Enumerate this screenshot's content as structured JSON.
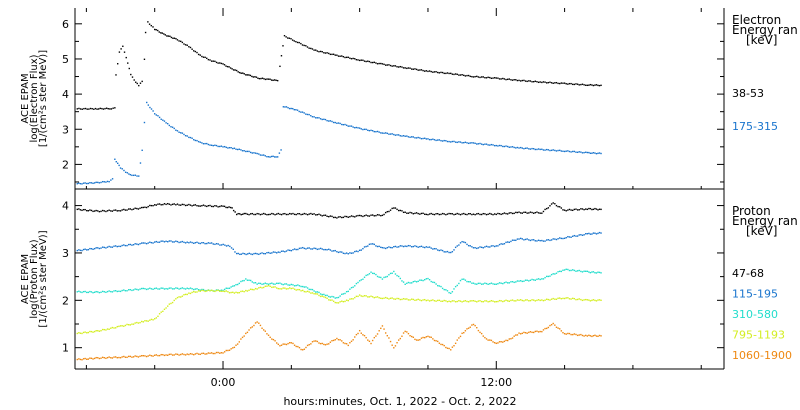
{
  "xaxis": {
    "label": "hours:minutes, Oct.  1, 2022 - Oct.  2, 2022",
    "ticks": [
      {
        "hour": 0,
        "label": "0:00"
      },
      {
        "hour": 12,
        "label": "12:00"
      }
    ]
  },
  "chart_data": [
    {
      "type": "scatter",
      "panel": "electron",
      "ylabel": [
        "ACE EPAM",
        "log(Electron Flux)",
        "[1/(cm²s ster MeV)]"
      ],
      "ylim": [
        1.3,
        6.45
      ],
      "yticks": [
        2,
        3,
        4,
        5,
        6
      ],
      "xlim": [
        -6.5,
        22
      ],
      "legend": {
        "title": [
          "Electron",
          "Energy ran",
          "[keV]"
        ]
      },
      "series": [
        {
          "name": "38-53",
          "color": "#000000",
          "points": [
            [
              -6.4,
              3.58
            ],
            [
              -5.6,
              3.58
            ],
            [
              -4.9,
              3.59
            ],
            [
              -4.75,
              3.6
            ],
            [
              -4.7,
              4.55
            ],
            [
              -4.55,
              5.2
            ],
            [
              -4.4,
              5.35
            ],
            [
              -4.25,
              5.05
            ],
            [
              -4.05,
              4.55
            ],
            [
              -3.9,
              4.4
            ],
            [
              -3.7,
              4.25
            ],
            [
              -3.55,
              4.35
            ],
            [
              -3.45,
              5.0
            ],
            [
              -3.4,
              5.75
            ],
            [
              -3.3,
              6.05
            ],
            [
              -3.0,
              5.85
            ],
            [
              -2.6,
              5.7
            ],
            [
              -2.0,
              5.55
            ],
            [
              -1.5,
              5.35
            ],
            [
              -1.0,
              5.1
            ],
            [
              -0.5,
              4.95
            ],
            [
              0.0,
              4.85
            ],
            [
              0.4,
              4.72
            ],
            [
              0.8,
              4.6
            ],
            [
              1.2,
              4.52
            ],
            [
              1.6,
              4.45
            ],
            [
              2.0,
              4.42
            ],
            [
              2.4,
              4.38
            ],
            [
              2.5,
              4.8
            ],
            [
              2.7,
              5.65
            ],
            [
              3.2,
              5.5
            ],
            [
              4.0,
              5.25
            ],
            [
              5.0,
              5.1
            ],
            [
              6.0,
              4.97
            ],
            [
              7.0,
              4.85
            ],
            [
              8.0,
              4.75
            ],
            [
              9.0,
              4.65
            ],
            [
              10.0,
              4.58
            ],
            [
              11.0,
              4.5
            ],
            [
              12.0,
              4.45
            ],
            [
              13.0,
              4.39
            ],
            [
              14.0,
              4.34
            ],
            [
              15.0,
              4.3
            ],
            [
              16.0,
              4.26
            ],
            [
              16.6,
              4.25
            ]
          ]
        },
        {
          "name": "175-315",
          "color": "#1874cd",
          "points": [
            [
              -6.4,
              1.45
            ],
            [
              -5.5,
              1.48
            ],
            [
              -5.0,
              1.52
            ],
            [
              -4.85,
              1.58
            ],
            [
              -4.75,
              2.15
            ],
            [
              -4.5,
              1.9
            ],
            [
              -4.2,
              1.75
            ],
            [
              -4.0,
              1.7
            ],
            [
              -3.7,
              1.66
            ],
            [
              -3.55,
              2.4
            ],
            [
              -3.45,
              3.2
            ],
            [
              -3.35,
              3.75
            ],
            [
              -3.0,
              3.45
            ],
            [
              -2.5,
              3.18
            ],
            [
              -2.0,
              2.95
            ],
            [
              -1.5,
              2.78
            ],
            [
              -1.0,
              2.62
            ],
            [
              -0.5,
              2.55
            ],
            [
              0.0,
              2.5
            ],
            [
              0.5,
              2.45
            ],
            [
              1.0,
              2.38
            ],
            [
              1.5,
              2.3
            ],
            [
              2.0,
              2.22
            ],
            [
              2.4,
              2.22
            ],
            [
              2.55,
              2.4
            ],
            [
              2.65,
              3.65
            ],
            [
              3.2,
              3.55
            ],
            [
              4.0,
              3.35
            ],
            [
              5.0,
              3.18
            ],
            [
              6.0,
              3.02
            ],
            [
              7.0,
              2.9
            ],
            [
              8.0,
              2.8
            ],
            [
              9.0,
              2.72
            ],
            [
              10.0,
              2.65
            ],
            [
              11.0,
              2.6
            ],
            [
              12.0,
              2.54
            ],
            [
              13.0,
              2.47
            ],
            [
              14.0,
              2.42
            ],
            [
              15.0,
              2.38
            ],
            [
              16.0,
              2.33
            ],
            [
              16.6,
              2.31
            ]
          ]
        }
      ]
    },
    {
      "type": "scatter",
      "panel": "proton",
      "ylabel": [
        "ACE EPAM",
        "log(Proton Flux)",
        "[1/(cm²s ster MeV)]"
      ],
      "ylim": [
        0.55,
        4.35
      ],
      "yticks": [
        1,
        2,
        3,
        4
      ],
      "xlim": [
        -6.5,
        22
      ],
      "legend": {
        "title": [
          "Proton",
          "Energy ran",
          "[keV]"
        ]
      },
      "series": [
        {
          "name": "47-68",
          "color": "#000000",
          "points": [
            [
              -6.4,
              3.92
            ],
            [
              -5.5,
              3.88
            ],
            [
              -4.5,
              3.9
            ],
            [
              -3.5,
              3.95
            ],
            [
              -3.0,
              4.02
            ],
            [
              -2.5,
              4.03
            ],
            [
              -2.0,
              4.02
            ],
            [
              -1.0,
              4.0
            ],
            [
              0.0,
              3.98
            ],
            [
              0.4,
              3.95
            ],
            [
              0.6,
              3.82
            ],
            [
              1.0,
              3.82
            ],
            [
              2.0,
              3.82
            ],
            [
              3.0,
              3.82
            ],
            [
              4.0,
              3.82
            ],
            [
              5.0,
              3.75
            ],
            [
              6.0,
              3.78
            ],
            [
              7.0,
              3.8
            ],
            [
              7.5,
              3.95
            ],
            [
              8.0,
              3.85
            ],
            [
              9.0,
              3.82
            ],
            [
              10.0,
              3.82
            ],
            [
              11.0,
              3.82
            ],
            [
              12.0,
              3.82
            ],
            [
              13.0,
              3.85
            ],
            [
              14.0,
              3.85
            ],
            [
              14.5,
              4.05
            ],
            [
              15.0,
              3.9
            ],
            [
              16.0,
              3.93
            ],
            [
              16.6,
              3.92
            ]
          ]
        },
        {
          "name": "115-195",
          "color": "#1874cd",
          "points": [
            [
              -6.4,
              3.05
            ],
            [
              -5.5,
              3.1
            ],
            [
              -4.5,
              3.15
            ],
            [
              -3.5,
              3.2
            ],
            [
              -2.5,
              3.25
            ],
            [
              -1.5,
              3.22
            ],
            [
              -0.5,
              3.2
            ],
            [
              0.3,
              3.15
            ],
            [
              0.6,
              2.98
            ],
            [
              1.5,
              2.98
            ],
            [
              2.5,
              3.02
            ],
            [
              3.5,
              3.1
            ],
            [
              4.5,
              3.08
            ],
            [
              5.5,
              2.98
            ],
            [
              6.0,
              3.05
            ],
            [
              6.5,
              3.2
            ],
            [
              7.0,
              3.1
            ],
            [
              8.0,
              3.15
            ],
            [
              9.0,
              3.12
            ],
            [
              10.0,
              3.0
            ],
            [
              10.5,
              3.25
            ],
            [
              11.0,
              3.1
            ],
            [
              12.0,
              3.15
            ],
            [
              13.0,
              3.3
            ],
            [
              14.0,
              3.25
            ],
            [
              15.0,
              3.32
            ],
            [
              16.0,
              3.4
            ],
            [
              16.6,
              3.42
            ]
          ]
        },
        {
          "name": "310-580",
          "color": "#22ddcc",
          "points": [
            [
              -6.4,
              2.18
            ],
            [
              -5.5,
              2.17
            ],
            [
              -4.5,
              2.2
            ],
            [
              -3.5,
              2.24
            ],
            [
              -2.5,
              2.25
            ],
            [
              -1.5,
              2.25
            ],
            [
              -0.5,
              2.2
            ],
            [
              0.0,
              2.22
            ],
            [
              0.5,
              2.3
            ],
            [
              1.0,
              2.45
            ],
            [
              1.5,
              2.35
            ],
            [
              2.5,
              2.35
            ],
            [
              3.5,
              2.3
            ],
            [
              4.5,
              2.1
            ],
            [
              5.0,
              2.05
            ],
            [
              5.5,
              2.2
            ],
            [
              6.0,
              2.4
            ],
            [
              6.5,
              2.6
            ],
            [
              7.0,
              2.45
            ],
            [
              7.5,
              2.6
            ],
            [
              8.0,
              2.35
            ],
            [
              9.0,
              2.45
            ],
            [
              10.0,
              2.15
            ],
            [
              10.5,
              2.45
            ],
            [
              11.0,
              2.35
            ],
            [
              12.0,
              2.35
            ],
            [
              13.0,
              2.4
            ],
            [
              14.0,
              2.45
            ],
            [
              15.0,
              2.65
            ],
            [
              16.0,
              2.6
            ],
            [
              16.6,
              2.58
            ]
          ]
        },
        {
          "name": "795-1193",
          "color": "#d4ee22",
          "points": [
            [
              -6.4,
              1.3
            ],
            [
              -5.5,
              1.35
            ],
            [
              -5.0,
              1.4
            ],
            [
              -4.5,
              1.45
            ],
            [
              -4.0,
              1.5
            ],
            [
              -3.5,
              1.55
            ],
            [
              -3.0,
              1.6
            ],
            [
              -2.5,
              1.85
            ],
            [
              -2.0,
              2.05
            ],
            [
              -1.5,
              2.15
            ],
            [
              -1.0,
              2.2
            ],
            [
              -0.5,
              2.2
            ],
            [
              0.0,
              2.2
            ],
            [
              0.5,
              2.15
            ],
            [
              1.0,
              2.2
            ],
            [
              1.5,
              2.25
            ],
            [
              2.0,
              2.3
            ],
            [
              2.5,
              2.25
            ],
            [
              3.0,
              2.25
            ],
            [
              3.5,
              2.2
            ],
            [
              4.0,
              2.15
            ],
            [
              4.5,
              2.05
            ],
            [
              5.0,
              1.95
            ],
            [
              5.5,
              2.0
            ],
            [
              6.0,
              2.1
            ],
            [
              7.0,
              2.05
            ],
            [
              8.0,
              2.02
            ],
            [
              9.0,
              2.0
            ],
            [
              10.0,
              1.98
            ],
            [
              11.0,
              1.98
            ],
            [
              12.0,
              1.98
            ],
            [
              13.0,
              2.0
            ],
            [
              14.0,
              2.0
            ],
            [
              15.0,
              2.05
            ],
            [
              16.0,
              2.0
            ],
            [
              16.6,
              2.0
            ]
          ]
        },
        {
          "name": "1060-1900",
          "color": "#ee8811",
          "points": [
            [
              -6.4,
              0.75
            ],
            [
              -5.5,
              0.78
            ],
            [
              -4.5,
              0.8
            ],
            [
              -3.5,
              0.82
            ],
            [
              -2.5,
              0.85
            ],
            [
              -1.5,
              0.86
            ],
            [
              -0.5,
              0.88
            ],
            [
              0.0,
              0.9
            ],
            [
              0.5,
              1.0
            ],
            [
              1.0,
              1.3
            ],
            [
              1.5,
              1.55
            ],
            [
              2.0,
              1.25
            ],
            [
              2.5,
              1.05
            ],
            [
              3.0,
              1.1
            ],
            [
              3.5,
              0.95
            ],
            [
              4.0,
              1.15
            ],
            [
              4.5,
              1.05
            ],
            [
              5.0,
              1.2
            ],
            [
              5.5,
              1.05
            ],
            [
              6.0,
              1.35
            ],
            [
              6.5,
              1.1
            ],
            [
              7.0,
              1.45
            ],
            [
              7.5,
              1.0
            ],
            [
              8.0,
              1.35
            ],
            [
              8.5,
              1.15
            ],
            [
              9.0,
              1.25
            ],
            [
              10.0,
              0.95
            ],
            [
              10.5,
              1.3
            ],
            [
              11.0,
              1.5
            ],
            [
              11.5,
              1.2
            ],
            [
              12.0,
              1.1
            ],
            [
              12.5,
              1.15
            ],
            [
              13.0,
              1.3
            ],
            [
              14.0,
              1.35
            ],
            [
              14.5,
              1.5
            ],
            [
              15.0,
              1.3
            ],
            [
              16.0,
              1.25
            ],
            [
              16.6,
              1.25
            ]
          ]
        }
      ]
    }
  ]
}
